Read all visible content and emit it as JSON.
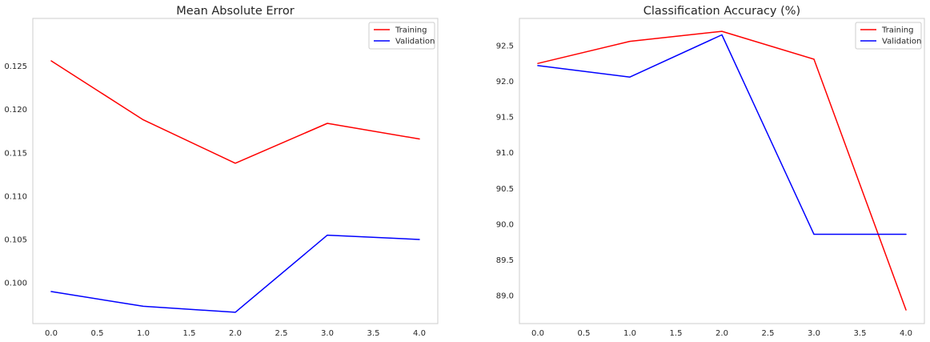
{
  "chart_data": [
    {
      "type": "line",
      "title": "Mean Absolute Error",
      "xlabel": "",
      "ylabel": "",
      "x": [
        0,
        1,
        2,
        3,
        4
      ],
      "xlim": [
        -0.2,
        4.2
      ],
      "ylim": [
        0.0953,
        0.1305
      ],
      "xticks": [
        0.0,
        0.5,
        1.0,
        1.5,
        2.0,
        2.5,
        3.0,
        3.5,
        4.0
      ],
      "xtick_labels": [
        "0.0",
        "0.5",
        "1.0",
        "1.5",
        "2.0",
        "2.5",
        "3.0",
        "3.5",
        "4.0"
      ],
      "yticks": [
        0.1,
        0.105,
        0.11,
        0.115,
        0.12,
        0.125
      ],
      "ytick_labels": [
        "0.100",
        "0.105",
        "0.110",
        "0.115",
        "0.120",
        "0.125"
      ],
      "grid": false,
      "legend_position": "top-right",
      "series": [
        {
          "name": "Training",
          "color": "#ff0000",
          "values": [
            0.1256,
            0.1188,
            0.1138,
            0.1184,
            0.1166
          ]
        },
        {
          "name": "Validation",
          "color": "#0000ff",
          "values": [
            0.099,
            0.0973,
            0.0966,
            0.1055,
            0.105
          ]
        }
      ]
    },
    {
      "type": "line",
      "title": "Classification Accuracy (%)",
      "xlabel": "",
      "ylabel": "",
      "x": [
        0,
        1,
        2,
        3,
        4
      ],
      "xlim": [
        -0.2,
        4.2
      ],
      "ylim": [
        88.61,
        92.88
      ],
      "xticks": [
        0.0,
        0.5,
        1.0,
        1.5,
        2.0,
        2.5,
        3.0,
        3.5,
        4.0
      ],
      "xtick_labels": [
        "0.0",
        "0.5",
        "1.0",
        "1.5",
        "2.0",
        "2.5",
        "3.0",
        "3.5",
        "4.0"
      ],
      "yticks": [
        89.0,
        89.5,
        90.0,
        90.5,
        91.0,
        91.5,
        92.0,
        92.5
      ],
      "ytick_labels": [
        "89.0",
        "89.5",
        "90.0",
        "90.5",
        "91.0",
        "91.5",
        "92.0",
        "92.5"
      ],
      "grid": false,
      "legend_position": "top-right",
      "series": [
        {
          "name": "Training",
          "color": "#ff0000",
          "values": [
            92.25,
            92.56,
            92.7,
            92.31,
            88.8
          ]
        },
        {
          "name": "Validation",
          "color": "#0000ff",
          "values": [
            92.22,
            92.06,
            92.65,
            89.86,
            89.86
          ]
        }
      ]
    }
  ]
}
